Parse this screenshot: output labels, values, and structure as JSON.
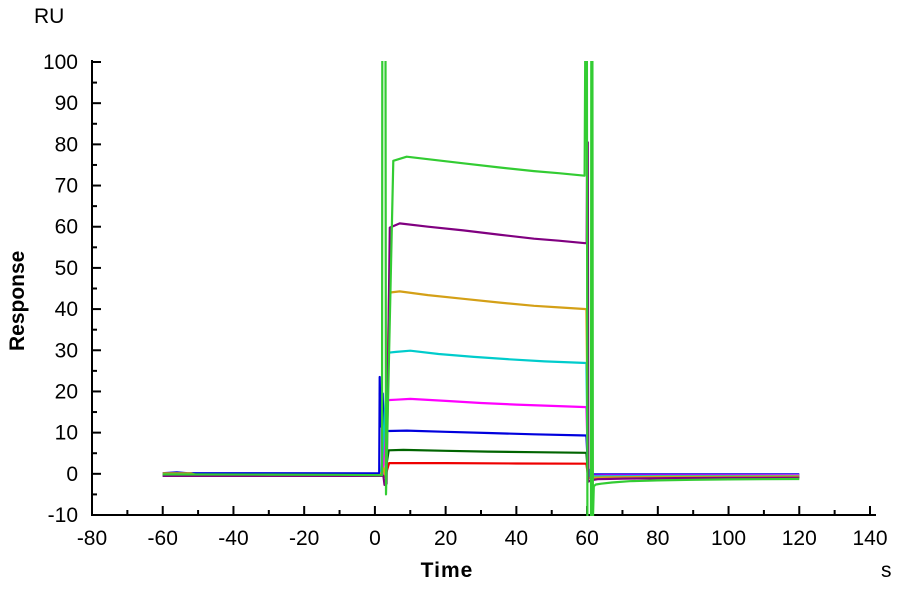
{
  "figure": {
    "title": "",
    "y_axis_unit_label": "RU",
    "y_axis_title": "Response",
    "x_axis_title": "Time",
    "x_axis_unit_label": "s",
    "background_color": "#ffffff",
    "axis_color": "#000000"
  },
  "chart_data": {
    "type": "line",
    "title": "",
    "xlabel": "Time",
    "x_unit": "s",
    "ylabel": "Response",
    "y_unit": "RU",
    "xlim": [
      -80,
      140
    ],
    "ylim": [
      -10,
      100
    ],
    "x_major_ticks": [
      -80,
      -60,
      -40,
      -20,
      0,
      20,
      40,
      60,
      80,
      100,
      120,
      140
    ],
    "x_minor_step": 10,
    "y_major_ticks": [
      -10,
      0,
      10,
      20,
      30,
      40,
      50,
      60,
      70,
      80,
      90,
      100
    ],
    "y_minor_step": 5,
    "grid": false,
    "legend_position": "none",
    "phases": {
      "baseline_start_s": -60,
      "association_start_s": 2,
      "dissociation_start_s": 60,
      "end_s": 120
    },
    "series": [
      {
        "name": "green",
        "color": "#33cc33",
        "points": [
          [
            -60,
            -0.15
          ],
          [
            -30,
            -0.2
          ],
          [
            -10,
            -0.25
          ],
          [
            0,
            -0.3
          ],
          [
            2.0,
            -0.35
          ],
          [
            2.1,
            105
          ],
          [
            3.0,
            105
          ],
          [
            3.15,
            -5.0
          ],
          [
            5.2,
            76.0
          ],
          [
            9,
            77.0
          ],
          [
            15,
            76.4
          ],
          [
            25,
            75.4
          ],
          [
            35,
            74.4
          ],
          [
            45,
            73.5
          ],
          [
            52,
            73.0
          ],
          [
            59.3,
            72.4
          ],
          [
            59.5,
            105
          ],
          [
            59.95,
            105
          ],
          [
            60.1,
            -11.5
          ],
          [
            61.1,
            -11.5
          ],
          [
            61.2,
            105
          ],
          [
            61.5,
            105
          ],
          [
            61.65,
            -11.5
          ],
          [
            61.9,
            -3.0
          ],
          [
            62.5,
            -2.6
          ],
          [
            64,
            -2.4
          ],
          [
            67,
            -2.1
          ],
          [
            72,
            -1.8
          ],
          [
            80,
            -1.6
          ],
          [
            90,
            -1.45
          ],
          [
            100,
            -1.35
          ],
          [
            110,
            -1.3
          ],
          [
            120,
            -1.25
          ]
        ]
      },
      {
        "name": "purple",
        "color": "#800080",
        "points": [
          [
            -60,
            -0.5
          ],
          [
            0,
            -0.5
          ],
          [
            2.4,
            -0.5
          ],
          [
            2.7,
            -2.7
          ],
          [
            3.3,
            -2.4
          ],
          [
            4.2,
            59.8
          ],
          [
            7,
            60.8
          ],
          [
            15,
            60.0
          ],
          [
            25,
            59.1
          ],
          [
            35,
            58.1
          ],
          [
            45,
            57.1
          ],
          [
            52,
            56.6
          ],
          [
            59.5,
            56.0
          ],
          [
            59.9,
            56.0
          ],
          [
            60.0,
            80.5
          ],
          [
            60.2,
            80.5
          ],
          [
            60.35,
            -1.9
          ],
          [
            61.5,
            -1.5
          ],
          [
            63,
            -1.3
          ],
          [
            70,
            -1.15
          ],
          [
            85,
            -1.05
          ],
          [
            100,
            -1.0
          ],
          [
            120,
            -0.95
          ]
        ]
      },
      {
        "name": "orange",
        "color": "#d4a017",
        "points": [
          [
            -60,
            0.1
          ],
          [
            -52,
            0.1
          ],
          [
            -50,
            -0.35
          ],
          [
            1.5,
            -0.4
          ],
          [
            2.5,
            1.3
          ],
          [
            3.0,
            -0.8
          ],
          [
            4.0,
            44.0
          ],
          [
            7,
            44.3
          ],
          [
            15,
            43.4
          ],
          [
            25,
            42.5
          ],
          [
            35,
            41.6
          ],
          [
            45,
            40.8
          ],
          [
            52,
            40.4
          ],
          [
            59.8,
            40.0
          ],
          [
            60.3,
            -1.1
          ],
          [
            61.5,
            -0.95
          ],
          [
            65,
            -0.85
          ],
          [
            80,
            -0.75
          ],
          [
            100,
            -0.7
          ],
          [
            120,
            -0.65
          ]
        ]
      },
      {
        "name": "cyan",
        "color": "#00cccc",
        "points": [
          [
            -60,
            -0.45
          ],
          [
            1.8,
            -0.45
          ],
          [
            3.8,
            29.4
          ],
          [
            6,
            29.6
          ],
          [
            10,
            29.9
          ],
          [
            18,
            29.1
          ],
          [
            28,
            28.4
          ],
          [
            38,
            27.8
          ],
          [
            48,
            27.3
          ],
          [
            59.8,
            26.9
          ],
          [
            60.2,
            1.0
          ],
          [
            60.6,
            1.0
          ],
          [
            60.8,
            -0.7
          ],
          [
            62,
            -0.6
          ],
          [
            80,
            -0.55
          ],
          [
            120,
            -0.5
          ]
        ]
      },
      {
        "name": "magenta",
        "color": "#ff00ff",
        "points": [
          [
            -60,
            -0.3
          ],
          [
            2.2,
            -0.3
          ],
          [
            3.6,
            17.9
          ],
          [
            6,
            18.0
          ],
          [
            10,
            18.2
          ],
          [
            20,
            17.7
          ],
          [
            30,
            17.2
          ],
          [
            40,
            16.8
          ],
          [
            50,
            16.5
          ],
          [
            59.8,
            16.2
          ],
          [
            60.3,
            -0.45
          ],
          [
            65,
            -0.4
          ],
          [
            90,
            -0.35
          ],
          [
            120,
            -0.3
          ]
        ]
      },
      {
        "name": "blue",
        "color": "#0000dd",
        "points": [
          [
            -60,
            0.15
          ],
          [
            -56,
            0.35
          ],
          [
            -53,
            0.15
          ],
          [
            1.2,
            0.1
          ],
          [
            1.35,
            23.5
          ],
          [
            1.6,
            11.5
          ],
          [
            2.2,
            19.5
          ],
          [
            2.4,
            11.0
          ],
          [
            3.8,
            10.4
          ],
          [
            9,
            10.5
          ],
          [
            20,
            10.2
          ],
          [
            32,
            9.9
          ],
          [
            45,
            9.6
          ],
          [
            59.8,
            9.3
          ],
          [
            60.3,
            -0.15
          ],
          [
            80,
            -0.15
          ],
          [
            120,
            -0.15
          ]
        ]
      },
      {
        "name": "dark-green",
        "color": "#006400",
        "points": [
          [
            -60,
            -0.35
          ],
          [
            2.8,
            -0.35
          ],
          [
            3.9,
            5.7
          ],
          [
            8,
            5.8
          ],
          [
            20,
            5.6
          ],
          [
            32,
            5.4
          ],
          [
            45,
            5.25
          ],
          [
            59.8,
            5.1
          ],
          [
            60.3,
            -0.9
          ],
          [
            70,
            -0.8
          ],
          [
            100,
            -0.7
          ],
          [
            120,
            -0.68
          ]
        ]
      },
      {
        "name": "red",
        "color": "#ee0000",
        "points": [
          [
            -60,
            -0.4
          ],
          [
            3.0,
            -0.4
          ],
          [
            4.0,
            2.6
          ],
          [
            20,
            2.6
          ],
          [
            40,
            2.5
          ],
          [
            59.8,
            2.45
          ],
          [
            60.3,
            -1.0
          ],
          [
            70,
            -0.9
          ],
          [
            100,
            -0.85
          ],
          [
            120,
            -0.8
          ]
        ]
      }
    ]
  }
}
